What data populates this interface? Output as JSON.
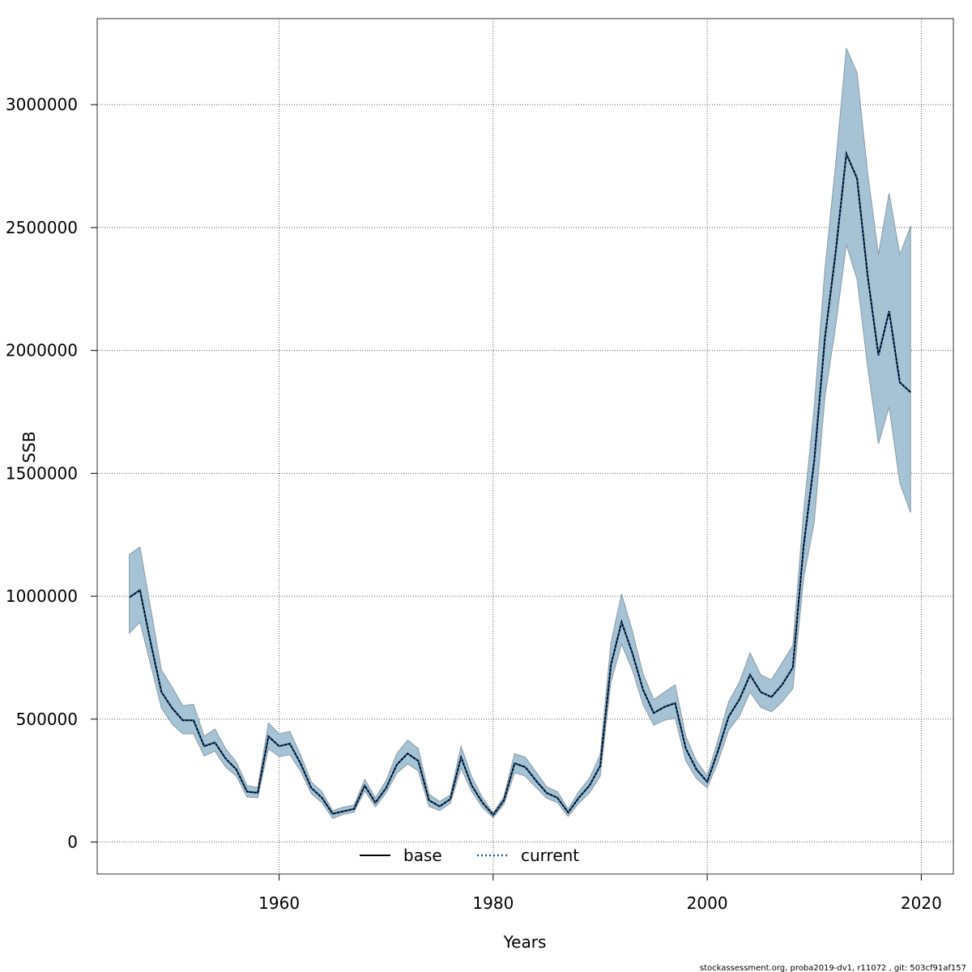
{
  "chart_data": {
    "type": "area",
    "title": "",
    "xlabel": "Years",
    "ylabel": "SSB",
    "xlim": [
      1943,
      2023
    ],
    "ylim": [
      -130000,
      3350000
    ],
    "x_ticks": [
      1960,
      1980,
      2000,
      2020
    ],
    "y_ticks": [
      0,
      500000,
      1000000,
      1500000,
      2000000,
      2500000,
      3000000
    ],
    "x_tick_labels": [
      "1960",
      "1980",
      "2000",
      "2020"
    ],
    "y_tick_labels": [
      "0",
      "500000",
      "1000000",
      "1500000",
      "2000000",
      "2500000",
      "3000000"
    ],
    "grid": true,
    "legend": {
      "position": "bottom-center",
      "entries": [
        {
          "name": "base",
          "style": "solid",
          "color": "#000000"
        },
        {
          "name": "current",
          "style": "dotted",
          "color": "#1f5fa0"
        }
      ]
    },
    "colors": {
      "band": "#a5c3d5",
      "band_edge": "#8a9aa5",
      "line": "#1f5fa0",
      "grid": "#555555"
    },
    "years": [
      1946,
      1947,
      1948,
      1949,
      1950,
      1951,
      1952,
      1953,
      1954,
      1955,
      1956,
      1957,
      1958,
      1959,
      1960,
      1961,
      1962,
      1963,
      1964,
      1965,
      1966,
      1967,
      1968,
      1969,
      1970,
      1971,
      1972,
      1973,
      1974,
      1975,
      1976,
      1977,
      1978,
      1979,
      1980,
      1981,
      1982,
      1983,
      1984,
      1985,
      1986,
      1987,
      1988,
      1989,
      1990,
      1991,
      1992,
      1993,
      1994,
      1995,
      1996,
      1997,
      1998,
      1999,
      2000,
      2001,
      2002,
      2003,
      2004,
      2005,
      2006,
      2007,
      2008,
      2009,
      2010,
      2011,
      2012,
      2013,
      2014,
      2015,
      2016,
      2017,
      2018,
      2019
    ],
    "series": [
      {
        "name": "base",
        "values": [
          995000,
          1025000,
          810000,
          610000,
          545000,
          495000,
          495000,
          390000,
          405000,
          340000,
          295000,
          205000,
          200000,
          430000,
          390000,
          400000,
          320000,
          220000,
          180000,
          115000,
          125000,
          135000,
          230000,
          160000,
          220000,
          315000,
          360000,
          330000,
          170000,
          145000,
          175000,
          345000,
          230000,
          160000,
          110000,
          170000,
          320000,
          305000,
          250000,
          200000,
          180000,
          120000,
          180000,
          230000,
          310000,
          720000,
          895000,
          770000,
          620000,
          525000,
          550000,
          565000,
          380000,
          295000,
          245000,
          370000,
          510000,
          580000,
          680000,
          610000,
          590000,
          640000,
          710000,
          1200000,
          1550000,
          2050000,
          2400000,
          2800000,
          2700000,
          2300000,
          1980000,
          2160000,
          1870000,
          1830000
        ]
      }
    ],
    "band_upper": [
      1170000,
      1200000,
      950000,
      700000,
      630000,
      555000,
      560000,
      430000,
      460000,
      380000,
      325000,
      230000,
      222000,
      485000,
      440000,
      450000,
      355000,
      245000,
      205000,
      128000,
      142000,
      150000,
      255000,
      180000,
      250000,
      360000,
      415000,
      380000,
      195000,
      165000,
      192000,
      390000,
      265000,
      180000,
      118000,
      185000,
      360000,
      345000,
      285000,
      225000,
      205000,
      135000,
      205000,
      260000,
      355000,
      810000,
      1010000,
      860000,
      685000,
      580000,
      610000,
      640000,
      430000,
      330000,
      270000,
      415000,
      570000,
      650000,
      770000,
      680000,
      660000,
      730000,
      800000,
      1340000,
      1770000,
      2330000,
      2760000,
      3230000,
      3130000,
      2720000,
      2390000,
      2640000,
      2390000,
      2505000
    ],
    "band_lower": [
      850000,
      895000,
      720000,
      545000,
      480000,
      440000,
      440000,
      350000,
      370000,
      305000,
      268000,
      183000,
      180000,
      380000,
      348000,
      355000,
      290000,
      197000,
      160000,
      96000,
      113000,
      121000,
      208000,
      143000,
      200000,
      280000,
      318000,
      290000,
      145000,
      128000,
      158000,
      300000,
      205000,
      140000,
      99000,
      153000,
      282000,
      268000,
      222000,
      178000,
      160000,
      104000,
      158000,
      200000,
      268000,
      650000,
      805000,
      700000,
      560000,
      475000,
      495000,
      505000,
      330000,
      258000,
      220000,
      325000,
      455000,
      512000,
      610000,
      548000,
      530000,
      570000,
      625000,
      1070000,
      1300000,
      1810000,
      2100000,
      2430000,
      2290000,
      1930000,
      1620000,
      1770000,
      1460000,
      1340000
    ]
  },
  "footer": "stockassessment.org, proba2019-dv1, r11072 , git: 503cf91af157"
}
